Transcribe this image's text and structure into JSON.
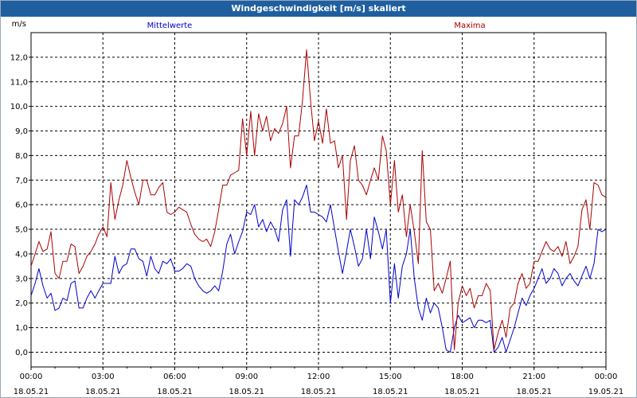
{
  "window": {
    "title": "Windgeschwindigkeit [m/s] skaliert"
  },
  "chart_data": {
    "type": "line",
    "title": "Windgeschwindigkeit [m/s] skaliert",
    "ylabel": "m/s",
    "xlabel": "",
    "ylim": [
      -0.6,
      13.0
    ],
    "xlim": [
      0,
      24
    ],
    "yticks": [
      0,
      1,
      2,
      3,
      4,
      5,
      6,
      7,
      8,
      9,
      10,
      11,
      12
    ],
    "ytick_labels": [
      "0,0",
      "1,0",
      "2,0",
      "3,0",
      "4,0",
      "5,0",
      "6,0",
      "7,0",
      "8,0",
      "9,0",
      "10,0",
      "11,0",
      "12,0"
    ],
    "xticks": [
      0,
      3,
      6,
      9,
      12,
      15,
      18,
      21,
      24
    ],
    "xtick_times": [
      "00:00",
      "03:00",
      "06:00",
      "09:00",
      "12:00",
      "15:00",
      "18:00",
      "21:00",
      "00:00"
    ],
    "xtick_dates": [
      "18.05.21",
      "18.05.21",
      "18.05.21",
      "18.05.21",
      "18.05.21",
      "18.05.21",
      "18.05.21",
      "18.05.21",
      "19.05.21"
    ],
    "grid": true,
    "legend": "top",
    "series": [
      {
        "name": "Mittelwerte",
        "color": "#0000cc",
        "points": [
          [
            0.0,
            2.3
          ],
          [
            0.17,
            2.8
          ],
          [
            0.33,
            3.4
          ],
          [
            0.5,
            2.7
          ],
          [
            0.67,
            2.2
          ],
          [
            0.83,
            2.4
          ],
          [
            1.0,
            1.7
          ],
          [
            1.17,
            1.8
          ],
          [
            1.33,
            2.2
          ],
          [
            1.5,
            2.1
          ],
          [
            1.67,
            2.8
          ],
          [
            1.83,
            2.9
          ],
          [
            2.0,
            1.8
          ],
          [
            2.17,
            1.8
          ],
          [
            2.33,
            2.2
          ],
          [
            2.5,
            2.5
          ],
          [
            2.67,
            2.2
          ],
          [
            2.83,
            2.5
          ],
          [
            3.0,
            2.8
          ],
          [
            3.17,
            2.8
          ],
          [
            3.33,
            2.8
          ],
          [
            3.5,
            3.9
          ],
          [
            3.67,
            3.2
          ],
          [
            3.83,
            3.5
          ],
          [
            4.0,
            3.6
          ],
          [
            4.17,
            4.2
          ],
          [
            4.33,
            4.2
          ],
          [
            4.5,
            3.8
          ],
          [
            4.67,
            3.7
          ],
          [
            4.83,
            3.1
          ],
          [
            5.0,
            3.9
          ],
          [
            5.17,
            3.4
          ],
          [
            5.33,
            3.2
          ],
          [
            5.5,
            3.7
          ],
          [
            5.67,
            3.6
          ],
          [
            5.83,
            3.8
          ],
          [
            6.0,
            3.3
          ],
          [
            6.17,
            3.3
          ],
          [
            6.33,
            3.4
          ],
          [
            6.5,
            3.6
          ],
          [
            6.67,
            3.5
          ],
          [
            6.83,
            3.0
          ],
          [
            7.0,
            2.7
          ],
          [
            7.17,
            2.5
          ],
          [
            7.33,
            2.4
          ],
          [
            7.5,
            2.5
          ],
          [
            7.67,
            2.7
          ],
          [
            7.83,
            2.5
          ],
          [
            8.0,
            3.3
          ],
          [
            8.17,
            4.4
          ],
          [
            8.33,
            4.8
          ],
          [
            8.5,
            4.0
          ],
          [
            8.67,
            4.5
          ],
          [
            8.83,
            4.9
          ],
          [
            9.0,
            5.7
          ],
          [
            9.17,
            5.6
          ],
          [
            9.33,
            6.0
          ],
          [
            9.5,
            5.1
          ],
          [
            9.67,
            5.4
          ],
          [
            9.83,
            4.9
          ],
          [
            10.0,
            5.3
          ],
          [
            10.17,
            5.0
          ],
          [
            10.33,
            4.5
          ],
          [
            10.5,
            5.8
          ],
          [
            10.67,
            6.2
          ],
          [
            10.83,
            3.9
          ],
          [
            11.0,
            6.2
          ],
          [
            11.17,
            6.0
          ],
          [
            11.33,
            6.3
          ],
          [
            11.5,
            6.8
          ],
          [
            11.67,
            5.7
          ],
          [
            11.83,
            5.7
          ],
          [
            12.0,
            5.6
          ],
          [
            12.17,
            5.5
          ],
          [
            12.33,
            5.3
          ],
          [
            12.5,
            6.0
          ],
          [
            12.67,
            5.0
          ],
          [
            12.83,
            4.1
          ],
          [
            13.0,
            3.2
          ],
          [
            13.17,
            4.1
          ],
          [
            13.33,
            5.0
          ],
          [
            13.5,
            4.3
          ],
          [
            13.67,
            3.5
          ],
          [
            13.83,
            3.8
          ],
          [
            14.0,
            5.0
          ],
          [
            14.17,
            3.8
          ],
          [
            14.33,
            5.5
          ],
          [
            14.5,
            4.9
          ],
          [
            14.67,
            4.2
          ],
          [
            14.83,
            5.0
          ],
          [
            15.0,
            2.0
          ],
          [
            15.17,
            3.6
          ],
          [
            15.33,
            2.2
          ],
          [
            15.5,
            3.5
          ],
          [
            15.67,
            4.0
          ],
          [
            15.83,
            5.0
          ],
          [
            16.0,
            3.0
          ],
          [
            16.17,
            1.8
          ],
          [
            16.33,
            1.3
          ],
          [
            16.5,
            2.2
          ],
          [
            16.67,
            1.6
          ],
          [
            16.83,
            2.0
          ],
          [
            17.0,
            1.8
          ],
          [
            17.17,
            1.0
          ],
          [
            17.33,
            0.1
          ],
          [
            17.5,
            0.0
          ],
          [
            17.67,
            1.0
          ],
          [
            17.83,
            1.5
          ],
          [
            18.0,
            1.2
          ],
          [
            18.17,
            1.3
          ],
          [
            18.33,
            1.4
          ],
          [
            18.5,
            1.0
          ],
          [
            18.67,
            1.3
          ],
          [
            18.83,
            1.3
          ],
          [
            19.0,
            1.2
          ],
          [
            19.17,
            1.3
          ],
          [
            19.33,
            0.0
          ],
          [
            19.5,
            0.2
          ],
          [
            19.67,
            0.6
          ],
          [
            19.83,
            0.0
          ],
          [
            20.0,
            0.5
          ],
          [
            20.17,
            1.0
          ],
          [
            20.33,
            1.6
          ],
          [
            20.5,
            2.2
          ],
          [
            20.67,
            1.9
          ],
          [
            20.83,
            2.3
          ],
          [
            21.0,
            2.6
          ],
          [
            21.17,
            3.0
          ],
          [
            21.33,
            3.4
          ],
          [
            21.5,
            2.8
          ],
          [
            21.67,
            3.0
          ],
          [
            21.83,
            3.4
          ],
          [
            22.0,
            3.2
          ],
          [
            22.17,
            2.7
          ],
          [
            22.33,
            3.0
          ],
          [
            22.5,
            3.2
          ],
          [
            22.67,
            2.9
          ],
          [
            22.83,
            2.7
          ],
          [
            23.0,
            3.1
          ],
          [
            23.17,
            3.5
          ],
          [
            23.33,
            3.0
          ],
          [
            23.5,
            3.6
          ],
          [
            23.67,
            5.0
          ],
          [
            23.83,
            4.9
          ],
          [
            24.0,
            5.0
          ]
        ]
      },
      {
        "name": "Maxima",
        "color": "#aa0000",
        "points": [
          [
            0.0,
            3.5
          ],
          [
            0.17,
            4.0
          ],
          [
            0.33,
            4.5
          ],
          [
            0.5,
            4.1
          ],
          [
            0.67,
            4.2
          ],
          [
            0.83,
            4.9
          ],
          [
            1.0,
            3.2
          ],
          [
            1.17,
            3.0
          ],
          [
            1.33,
            3.7
          ],
          [
            1.5,
            3.7
          ],
          [
            1.67,
            4.4
          ],
          [
            1.83,
            4.3
          ],
          [
            2.0,
            3.2
          ],
          [
            2.17,
            3.5
          ],
          [
            2.33,
            3.9
          ],
          [
            2.5,
            4.1
          ],
          [
            2.67,
            4.4
          ],
          [
            2.83,
            4.8
          ],
          [
            3.0,
            5.1
          ],
          [
            3.17,
            4.7
          ],
          [
            3.33,
            6.9
          ],
          [
            3.5,
            5.4
          ],
          [
            3.67,
            6.2
          ],
          [
            3.83,
            6.8
          ],
          [
            4.0,
            7.8
          ],
          [
            4.17,
            7.1
          ],
          [
            4.33,
            6.5
          ],
          [
            4.5,
            6.0
          ],
          [
            4.67,
            7.0
          ],
          [
            4.83,
            7.0
          ],
          [
            5.0,
            6.4
          ],
          [
            5.17,
            6.4
          ],
          [
            5.33,
            6.7
          ],
          [
            5.5,
            6.9
          ],
          [
            5.67,
            5.7
          ],
          [
            5.83,
            5.6
          ],
          [
            6.0,
            5.7
          ],
          [
            6.17,
            5.9
          ],
          [
            6.33,
            5.8
          ],
          [
            6.5,
            5.7
          ],
          [
            6.67,
            5.2
          ],
          [
            6.83,
            4.8
          ],
          [
            7.0,
            4.6
          ],
          [
            7.17,
            4.5
          ],
          [
            7.33,
            4.6
          ],
          [
            7.5,
            4.3
          ],
          [
            7.67,
            4.9
          ],
          [
            7.83,
            5.8
          ],
          [
            8.0,
            6.8
          ],
          [
            8.17,
            6.8
          ],
          [
            8.33,
            7.2
          ],
          [
            8.5,
            7.3
          ],
          [
            8.67,
            7.4
          ],
          [
            8.83,
            9.5
          ],
          [
            9.0,
            8.0
          ],
          [
            9.17,
            9.8
          ],
          [
            9.33,
            8.0
          ],
          [
            9.5,
            9.7
          ],
          [
            9.67,
            9.0
          ],
          [
            9.83,
            9.6
          ],
          [
            10.0,
            8.6
          ],
          [
            10.17,
            9.1
          ],
          [
            10.33,
            8.9
          ],
          [
            10.5,
            9.3
          ],
          [
            10.67,
            10.0
          ],
          [
            10.83,
            7.5
          ],
          [
            11.0,
            8.8
          ],
          [
            11.17,
            8.8
          ],
          [
            11.33,
            10.2
          ],
          [
            11.5,
            12.3
          ],
          [
            11.67,
            10.2
          ],
          [
            11.83,
            8.6
          ],
          [
            12.0,
            9.4
          ],
          [
            12.17,
            8.5
          ],
          [
            12.33,
            9.9
          ],
          [
            12.5,
            8.5
          ],
          [
            12.67,
            8.6
          ],
          [
            12.83,
            7.5
          ],
          [
            13.0,
            8.0
          ],
          [
            13.17,
            5.4
          ],
          [
            13.33,
            7.8
          ],
          [
            13.5,
            8.4
          ],
          [
            13.67,
            7.0
          ],
          [
            13.83,
            6.8
          ],
          [
            14.0,
            6.4
          ],
          [
            14.17,
            7.0
          ],
          [
            14.33,
            7.5
          ],
          [
            14.5,
            7.0
          ],
          [
            14.67,
            8.8
          ],
          [
            14.83,
            8.2
          ],
          [
            15.0,
            6.0
          ],
          [
            15.17,
            7.8
          ],
          [
            15.33,
            5.7
          ],
          [
            15.5,
            6.4
          ],
          [
            15.67,
            4.7
          ],
          [
            15.83,
            6.0
          ],
          [
            16.0,
            4.9
          ],
          [
            16.17,
            3.6
          ],
          [
            16.33,
            8.2
          ],
          [
            16.5,
            5.3
          ],
          [
            16.67,
            5.0
          ],
          [
            16.83,
            2.5
          ],
          [
            17.0,
            2.8
          ],
          [
            17.17,
            2.4
          ],
          [
            17.33,
            3.0
          ],
          [
            17.5,
            3.7
          ],
          [
            17.67,
            0.1
          ],
          [
            17.83,
            2.0
          ],
          [
            18.0,
            2.7
          ],
          [
            18.17,
            2.3
          ],
          [
            18.33,
            2.6
          ],
          [
            18.5,
            1.8
          ],
          [
            18.67,
            2.3
          ],
          [
            18.83,
            2.3
          ],
          [
            19.0,
            2.8
          ],
          [
            19.17,
            2.5
          ],
          [
            19.33,
            0.1
          ],
          [
            19.5,
            0.8
          ],
          [
            19.67,
            1.3
          ],
          [
            19.83,
            0.6
          ],
          [
            20.0,
            1.8
          ],
          [
            20.17,
            2.0
          ],
          [
            20.33,
            2.8
          ],
          [
            20.5,
            3.2
          ],
          [
            20.67,
            2.6
          ],
          [
            20.83,
            2.8
          ],
          [
            21.0,
            3.7
          ],
          [
            21.17,
            3.7
          ],
          [
            21.33,
            4.1
          ],
          [
            21.5,
            4.5
          ],
          [
            21.67,
            4.2
          ],
          [
            21.83,
            4.1
          ],
          [
            22.0,
            4.3
          ],
          [
            22.17,
            3.9
          ],
          [
            22.33,
            4.5
          ],
          [
            22.5,
            3.6
          ],
          [
            22.67,
            3.9
          ],
          [
            22.83,
            4.3
          ],
          [
            23.0,
            5.8
          ],
          [
            23.17,
            6.2
          ],
          [
            23.33,
            5.0
          ],
          [
            23.5,
            6.9
          ],
          [
            23.67,
            6.8
          ],
          [
            23.83,
            6.4
          ],
          [
            24.0,
            6.3
          ]
        ]
      }
    ]
  }
}
